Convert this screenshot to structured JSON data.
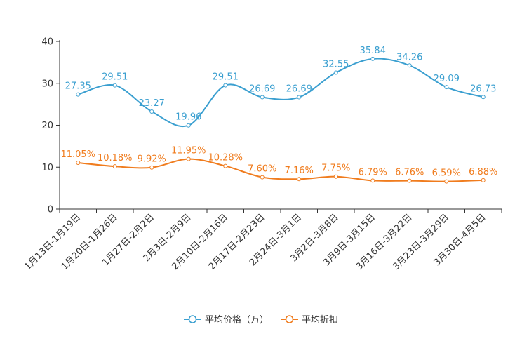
{
  "chart_data": {
    "type": "line",
    "title": "",
    "xlabel": "",
    "ylabel": "",
    "ylim": [
      0,
      40
    ],
    "yticks": [
      "0",
      "10",
      "20",
      "30",
      "40"
    ],
    "categories": [
      "1月13日-1月19日",
      "1月20日-1月26日",
      "1月27日-2月2日",
      "2月3日-2月9日",
      "2月10日-2月16日",
      "2月17日-2月23日",
      "2月24日-3月1日",
      "3月2日-3月8日",
      "3月9日-3月15日",
      "3月16日-3月22日",
      "3月23日-3月29日",
      "3月30日-4月5日"
    ],
    "series": [
      {
        "name": "平均价格（万）",
        "color": "#3a9fd0",
        "values": [
          27.35,
          29.51,
          23.27,
          19.96,
          29.51,
          26.69,
          26.69,
          32.55,
          35.84,
          34.26,
          29.09,
          26.73
        ],
        "labels": [
          "27.35",
          "29.51",
          "23.27",
          "19.96",
          "29.51",
          "26.69",
          "26.69",
          "32.55",
          "35.84",
          "34.26",
          "29.09",
          "26.73"
        ]
      },
      {
        "name": "平均折扣",
        "color": "#f07c1e",
        "values": [
          11.05,
          10.18,
          9.92,
          11.95,
          10.28,
          7.6,
          7.16,
          7.75,
          6.79,
          6.76,
          6.59,
          6.88
        ],
        "labels": [
          "11.05%",
          "10.18%",
          "9.92%",
          "11.95%",
          "10.28%",
          "7.60%",
          "7.16%",
          "7.75%",
          "6.79%",
          "6.76%",
          "6.59%",
          "6.88%"
        ]
      }
    ],
    "legend_position": "bottom-center"
  }
}
